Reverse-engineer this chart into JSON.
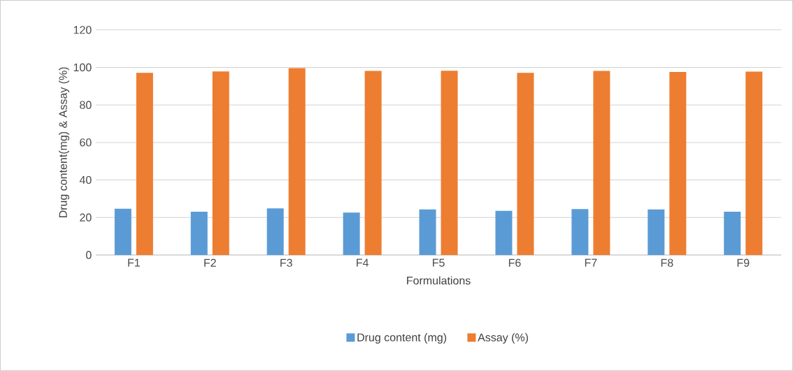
{
  "chart_data": {
    "type": "bar",
    "xlabel": "Formulations",
    "ylabel": "Drug content(mg)  & Assay (%)",
    "categories": [
      "F1",
      "F2",
      "F3",
      "F4",
      "F5",
      "F6",
      "F7",
      "F8",
      "F9"
    ],
    "series": [
      {
        "name": "Drug content (mg)",
        "color": "#5b9bd5",
        "values": [
          24.7,
          23.1,
          24.8,
          22.6,
          24.3,
          23.5,
          24.5,
          24.3,
          23.1
        ]
      },
      {
        "name": "Assay (%)",
        "color": "#ed7d31",
        "values": [
          97.1,
          97.9,
          99.6,
          98.1,
          98.2,
          97.1,
          98.1,
          97.6,
          97.8
        ]
      }
    ],
    "ylim": [
      0,
      120
    ],
    "yticks": [
      0,
      20,
      40,
      60,
      80,
      100,
      120
    ],
    "grid": "y",
    "legend": "bottom"
  }
}
